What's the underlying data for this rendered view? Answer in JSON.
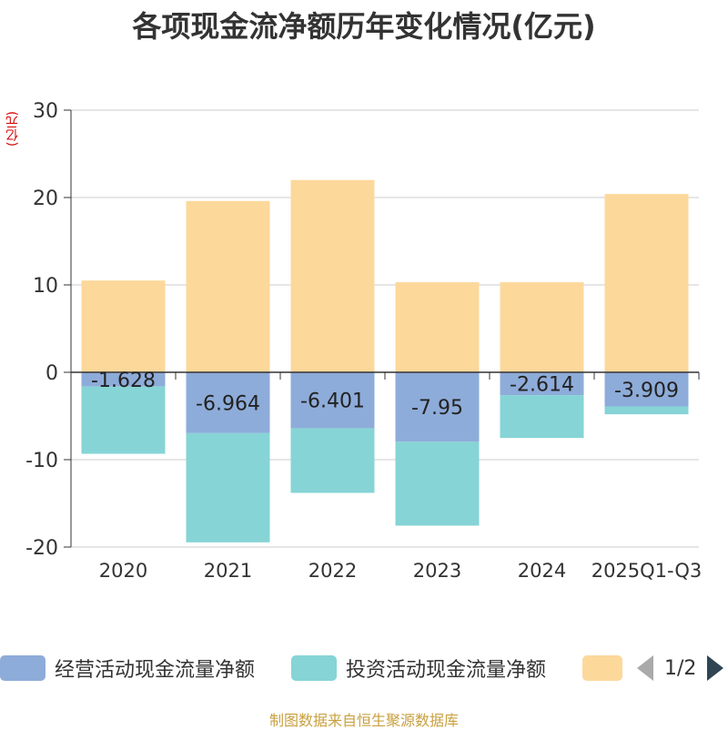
{
  "chart_data": {
    "type": "bar",
    "stacked": true,
    "title": "各项现金流净额历年变化情况(亿元)",
    "ylabel": "(亿元)",
    "ylim": [
      -20,
      30
    ],
    "yticks": [
      30,
      20,
      10,
      0,
      -10,
      -20
    ],
    "categories": [
      "2020",
      "2021",
      "2022",
      "2023",
      "2024",
      "2025Q1-Q3"
    ],
    "series": [
      {
        "name": "经营活动现金流量净额",
        "color": "#8eacd9",
        "values": [
          -1.628,
          -6.964,
          -6.401,
          -7.95,
          -2.614,
          -3.909
        ]
      },
      {
        "name": "投资活动现金流量净额",
        "color": "#86d4d6",
        "values": [
          -7.7,
          -12.5,
          -7.4,
          -9.6,
          -4.9,
          -0.9
        ]
      },
      {
        "name": "",
        "color": "#fdd89b",
        "values": [
          10.5,
          19.6,
          22.0,
          10.3,
          10.3,
          20.4
        ]
      }
    ],
    "data_labels": [
      "-1.628",
      "-6.964",
      "-6.401",
      "-7.95",
      "-2.614",
      "-3.909"
    ]
  },
  "legend": {
    "page": "1/2"
  },
  "source": "制图数据来自恒生聚源数据库"
}
